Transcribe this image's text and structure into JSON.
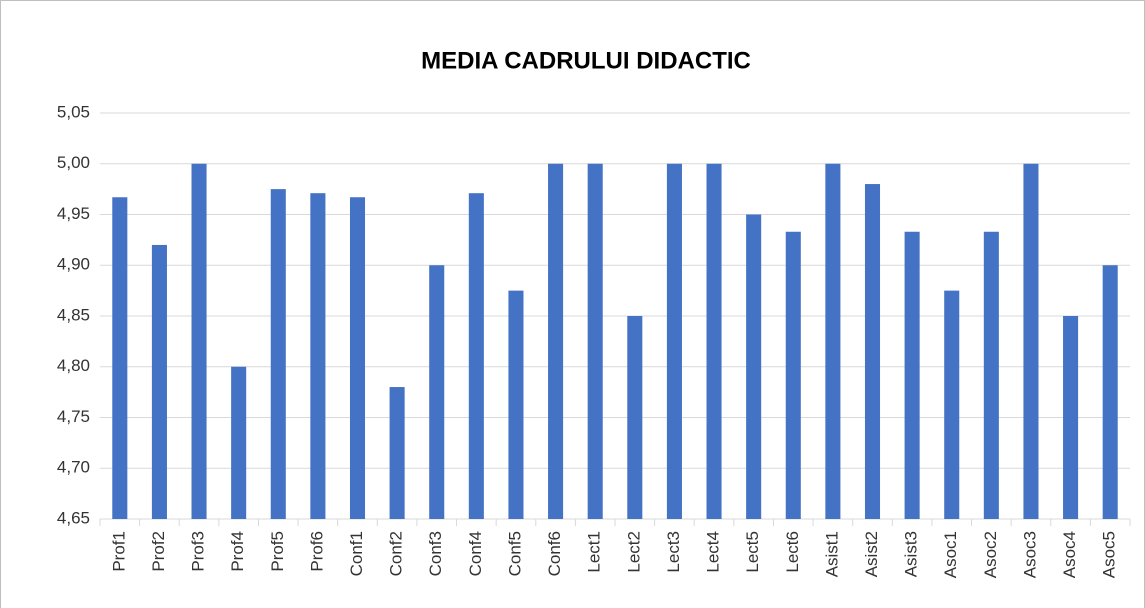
{
  "chart_data": {
    "type": "bar",
    "title": "MEDIA CADRULUI DIDACTIC",
    "categories": [
      "Prof1",
      "Prof2",
      "Prof3",
      "Prof4",
      "Prof5",
      "Prof6",
      "Conf1",
      "Conf2",
      "Conf3",
      "Conf4",
      "Conf5",
      "Conf6",
      "Lect1",
      "Lect2",
      "Lect3",
      "Lect4",
      "Lect5",
      "Lect6",
      "Asist1",
      "Asist2",
      "Asist3",
      "Asoc1",
      "Asoc2",
      "Asoc3",
      "Asoc4",
      "Asoc5"
    ],
    "values": [
      4.967,
      4.92,
      5.0,
      4.8,
      4.975,
      4.971,
      4.967,
      4.78,
      4.9,
      4.971,
      4.875,
      5.0,
      5.0,
      4.85,
      5.0,
      5.0,
      4.95,
      4.933,
      5.0,
      4.98,
      4.933,
      4.875,
      4.933,
      5.0,
      4.85,
      4.9
    ],
    "color": "#4472c4",
    "ylim": [
      4.65,
      5.05
    ],
    "yticks": [
      {
        "value": 4.65,
        "label": "4,65"
      },
      {
        "value": 4.7,
        "label": "4,70"
      },
      {
        "value": 4.75,
        "label": "4,75"
      },
      {
        "value": 4.8,
        "label": "4,80"
      },
      {
        "value": 4.85,
        "label": "4,85"
      },
      {
        "value": 4.9,
        "label": "4,90"
      },
      {
        "value": 4.95,
        "label": "4,95"
      },
      {
        "value": 5.0,
        "label": "5,00"
      },
      {
        "value": 5.05,
        "label": "5,05"
      }
    ],
    "grid": true
  }
}
